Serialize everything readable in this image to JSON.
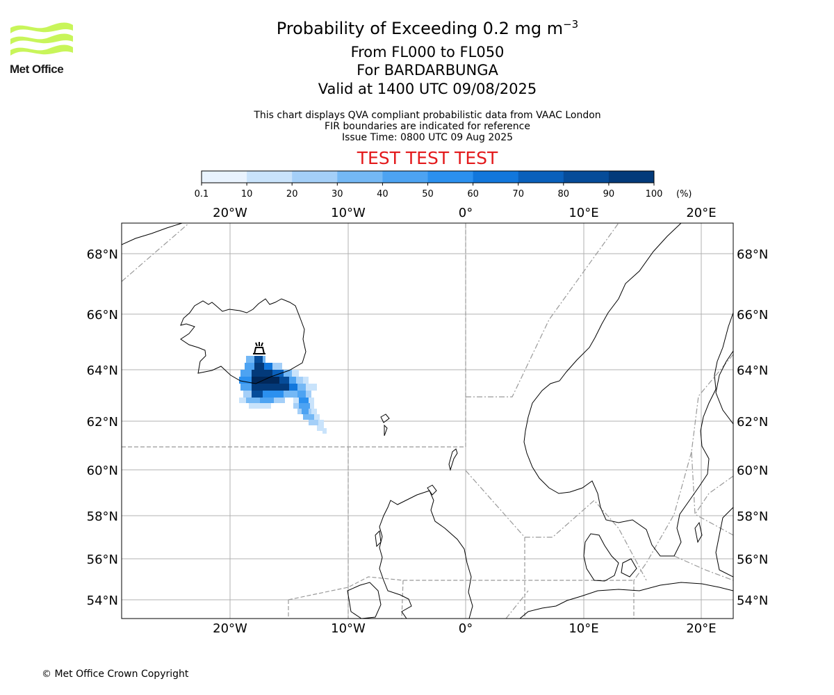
{
  "logo": {
    "text": "Met Office",
    "icon": "met-office-wave-logo",
    "color": "#c8f55a"
  },
  "title": {
    "main": "Probability of Exceeding 0.2 mg m",
    "main_superscript": "−3",
    "line2": "From FL000 to FL050",
    "line3": "For BARDARBUNGA",
    "line4": "Valid at 1400 UTC 09/08/2025"
  },
  "notes": {
    "line1": "This chart displays QVA compliant probabilistic data from VAAC London",
    "line2": "FIR boundaries are indicated for reference",
    "line3": "Issue Time: 0800 UTC 09 Aug 2025"
  },
  "test_banner": {
    "text": "TEST TEST TEST",
    "color": "#e31a1c"
  },
  "colorbar": {
    "ticks": [
      "0.1",
      "10",
      "20",
      "30",
      "40",
      "50",
      "60",
      "70",
      "80",
      "90",
      "100"
    ],
    "unit": "(%)",
    "colors": [
      "#e9f3fe",
      "#c9e3fb",
      "#a4cff8",
      "#74b8f5",
      "#4da3f2",
      "#2b90ef",
      "#1277dc",
      "#0a60bb",
      "#064c99",
      "#033a7a",
      "#01285a"
    ]
  },
  "map": {
    "lon_labels": [
      "20°W",
      "10°W",
      "0°",
      "10°E",
      "20°E"
    ],
    "lat_labels": [
      "68°N",
      "66°N",
      "64°N",
      "62°N",
      "60°N",
      "58°N",
      "56°N",
      "54°N"
    ],
    "volcano_icon": "volcano-icon"
  },
  "footer": {
    "copyright": "© Met Office Crown Copyright"
  }
}
